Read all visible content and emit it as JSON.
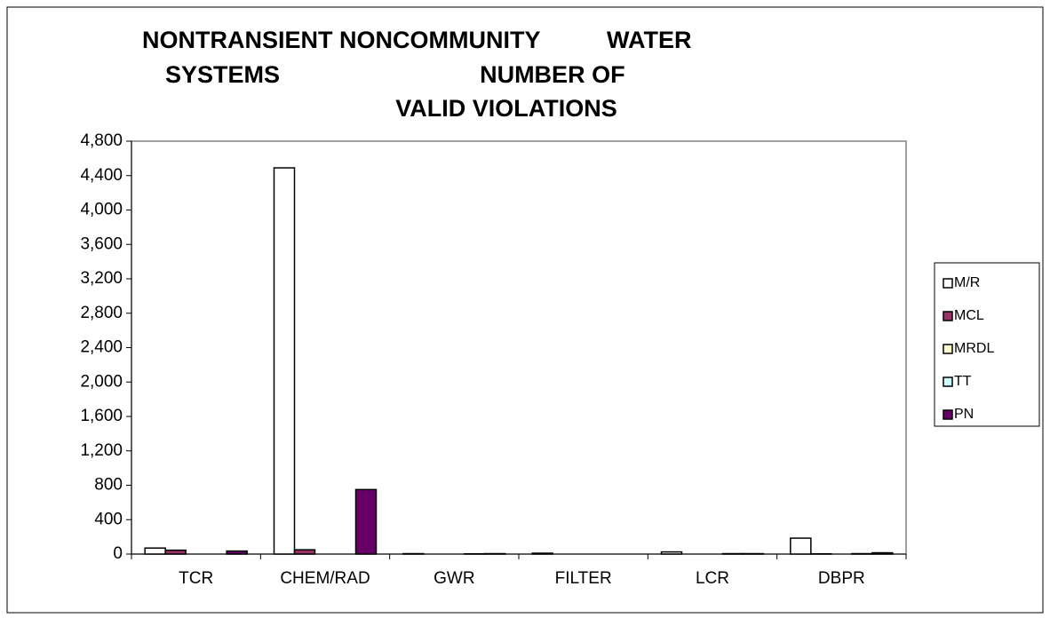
{
  "chart_data": {
    "type": "bar",
    "title": [
      "NONTRANSIENT NONCOMMUNITY          WATER",
      "SYSTEMS                              NUMBER OF",
      "VALID VIOLATIONS"
    ],
    "categories": [
      "TCR",
      "CHEM/RAD",
      "GWR",
      "FILTER",
      "LCR",
      "DBPR"
    ],
    "series": [
      {
        "name": "M/R",
        "color": "#ffffff",
        "values": [
          70,
          4490,
          5,
          10,
          25,
          185
        ]
      },
      {
        "name": "MCL",
        "color": "#993366",
        "values": [
          45,
          50,
          0,
          0,
          0,
          3
        ]
      },
      {
        "name": "MRDL",
        "color": "#ffffcc",
        "values": [
          0,
          0,
          0,
          0,
          0,
          0
        ]
      },
      {
        "name": "TT",
        "color": "#ccffff",
        "values": [
          0,
          0,
          3,
          0,
          5,
          5
        ]
      },
      {
        "name": "PN",
        "color": "#660066",
        "values": [
          35,
          750,
          5,
          0,
          5,
          15
        ]
      }
    ],
    "ylim": [
      0,
      4800
    ],
    "yticks": [
      0,
      400,
      800,
      {
        "value": 1200,
        "label": "1,200"
      },
      {
        "value": 1600,
        "label": "1,600"
      },
      {
        "value": 2000,
        "label": "2,000"
      },
      {
        "value": 2400,
        "label": "2,400"
      },
      {
        "value": 2800,
        "label": "2,800"
      },
      {
        "value": 3200,
        "label": "3,200"
      },
      {
        "value": 3600,
        "label": "3,600"
      },
      {
        "value": 4000,
        "label": "4,000"
      },
      {
        "value": 4400,
        "label": "4,400"
      },
      {
        "value": 4800,
        "label": "4,800"
      }
    ],
    "legend": "right"
  }
}
